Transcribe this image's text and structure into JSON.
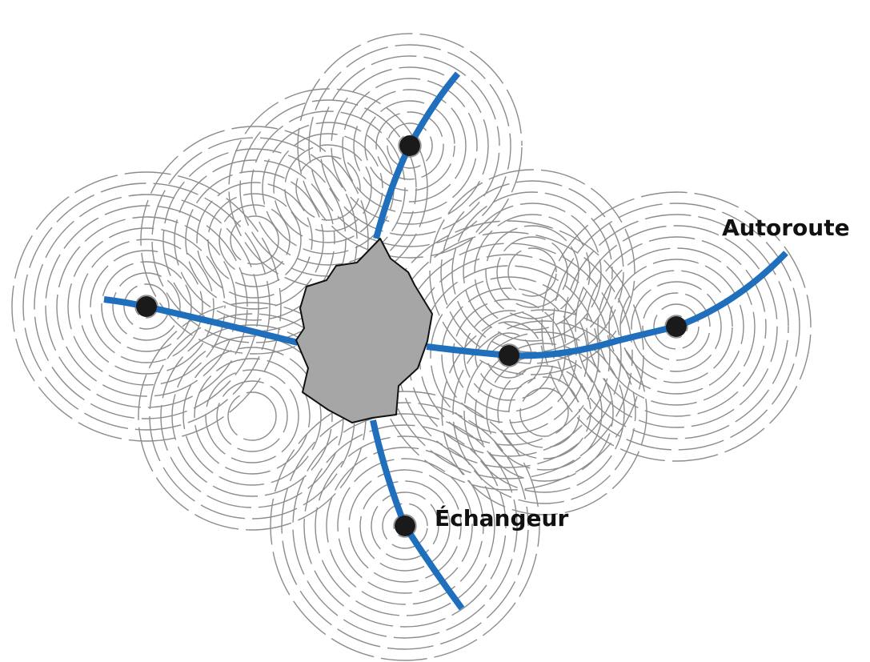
{
  "labels": {
    "highway": "Autoroute",
    "interchange": "Échangeur"
  },
  "colors": {
    "highway": "#1f6fbd",
    "interchange_node": "#1a1a1a",
    "city_fill": "#a6a6a6",
    "city_outline": "#111111",
    "ripple": "#8c8c8c",
    "background": "#ffffff"
  }
}
